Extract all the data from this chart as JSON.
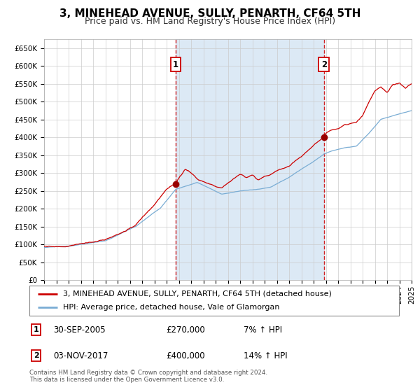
{
  "title": "3, MINEHEAD AVENUE, SULLY, PENARTH, CF64 5TH",
  "subtitle": "Price paid vs. HM Land Registry's House Price Index (HPI)",
  "legend_line1": "3, MINEHEAD AVENUE, SULLY, PENARTH, CF64 5TH (detached house)",
  "legend_line2": "HPI: Average price, detached house, Vale of Glamorgan",
  "annotation1_label": "1",
  "annotation1_date": "30-SEP-2005",
  "annotation1_price": "£270,000",
  "annotation1_hpi": "7% ↑ HPI",
  "annotation1_year": 2005.75,
  "annotation1_value": 270000,
  "annotation2_label": "2",
  "annotation2_date": "03-NOV-2017",
  "annotation2_price": "£400,000",
  "annotation2_hpi": "14% ↑ HPI",
  "annotation2_year": 2017.84,
  "annotation2_value": 400000,
  "hpi_color": "#7aadd4",
  "price_color": "#cc0000",
  "point_color": "#990000",
  "bg_color": "#dce9f5",
  "chart_bg": "#ffffff",
  "grid_color": "#cccccc",
  "ylim_min": 0,
  "ylim_max": 675000,
  "xlim_min": 1995,
  "xlim_max": 2025,
  "ytick_step": 50000,
  "copyright_text": "Contains HM Land Registry data © Crown copyright and database right 2024.\nThis data is licensed under the Open Government Licence v3.0.",
  "title_fontsize": 11,
  "subtitle_fontsize": 9,
  "tick_fontsize": 7.5,
  "legend_fontsize": 8,
  "annotation_fontsize": 8.5
}
